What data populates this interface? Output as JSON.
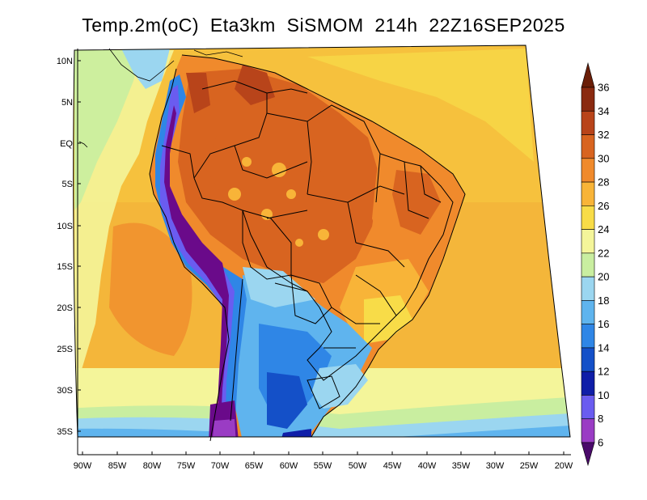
{
  "title": "Temp.2m(oC)  Eta3km  SiSMOM  214h  22Z16SEP2025",
  "axes": {
    "lon_labels": [
      "90W",
      "85W",
      "80W",
      "75W",
      "70W",
      "65W",
      "60W",
      "55W",
      "50W",
      "45W",
      "40W",
      "35W",
      "30W",
      "25W",
      "20W"
    ],
    "lat_labels": [
      "10N",
      "5N",
      "EQ",
      "5S",
      "10S",
      "15S",
      "20S",
      "25S",
      "30S",
      "35S"
    ]
  },
  "colorbar": {
    "labels": [
      "6",
      "8",
      "10",
      "12",
      "14",
      "16",
      "18",
      "20",
      "22",
      "24",
      "26",
      "28",
      "30",
      "32",
      "34",
      "36"
    ],
    "colors": [
      "#6a0a8a",
      "#9a3cc4",
      "#6a5cf0",
      "#0f1ea8",
      "#1450c8",
      "#2f86e6",
      "#5fb4ee",
      "#9bd6f0",
      "#c9eea0",
      "#f4f59a",
      "#f8dc48",
      "#f8b438",
      "#f08a2c",
      "#d86420",
      "#b8441a",
      "#8a2a10"
    ],
    "under_color": "#4a0a6a",
    "over_color": "#6a1e08"
  },
  "chart_data": {
    "type": "heatmap",
    "title": "Temp.2m(oC)  Eta3km  SiSMOM  214h  22Z16SEP2025",
    "variable": "Temp.2m",
    "unit": "oC",
    "model": "Eta3km",
    "run": "SiSMOM",
    "forecast_hour": "214h",
    "valid_time": "22Z16SEP2025",
    "lon_range": [
      "90W",
      "20W"
    ],
    "lat_range": [
      "38S",
      "12N"
    ],
    "colorbar_levels": [
      6,
      8,
      10,
      12,
      14,
      16,
      18,
      20,
      22,
      24,
      26,
      28,
      30,
      32,
      34,
      36
    ],
    "colorbar_extends": "both"
  }
}
